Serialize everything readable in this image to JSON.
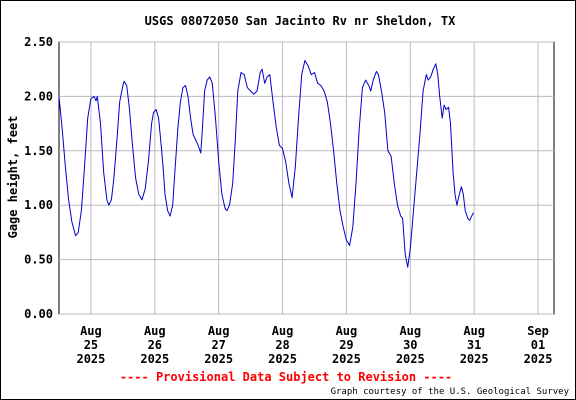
{
  "chart_data": {
    "type": "line",
    "title": "USGS 08072050 San Jacinto Rv nr Sheldon, TX",
    "xlabel": "",
    "ylabel": "Gage height, feet",
    "ylim": [
      0,
      2.5
    ],
    "yticks": [
      "0.00",
      "0.50",
      "1.00",
      "1.50",
      "2.00",
      "2.50"
    ],
    "xlim": [
      0,
      7.75
    ],
    "xticks": [
      {
        "x": 0.5,
        "lines": [
          "Aug",
          "25",
          "2025"
        ]
      },
      {
        "x": 1.5,
        "lines": [
          "Aug",
          "26",
          "2025"
        ]
      },
      {
        "x": 2.5,
        "lines": [
          "Aug",
          "27",
          "2025"
        ]
      },
      {
        "x": 3.5,
        "lines": [
          "Aug",
          "28",
          "2025"
        ]
      },
      {
        "x": 4.5,
        "lines": [
          "Aug",
          "29",
          "2025"
        ]
      },
      {
        "x": 5.5,
        "lines": [
          "Aug",
          "30",
          "2025"
        ]
      },
      {
        "x": 6.5,
        "lines": [
          "Aug",
          "31",
          "2025"
        ]
      },
      {
        "x": 7.5,
        "lines": [
          "Sep",
          "01",
          "2025"
        ]
      }
    ],
    "grid": true,
    "series": [
      {
        "color": "#0000cc",
        "points": [
          [
            0.0,
            2.0
          ],
          [
            0.05,
            1.7
          ],
          [
            0.1,
            1.35
          ],
          [
            0.15,
            1.05
          ],
          [
            0.2,
            0.85
          ],
          [
            0.26,
            0.72
          ],
          [
            0.3,
            0.75
          ],
          [
            0.35,
            0.95
          ],
          [
            0.4,
            1.35
          ],
          [
            0.45,
            1.8
          ],
          [
            0.5,
            1.98
          ],
          [
            0.55,
            2.0
          ],
          [
            0.58,
            1.96
          ],
          [
            0.6,
            2.0
          ],
          [
            0.65,
            1.75
          ],
          [
            0.7,
            1.3
          ],
          [
            0.75,
            1.05
          ],
          [
            0.78,
            1.0
          ],
          [
            0.82,
            1.05
          ],
          [
            0.86,
            1.25
          ],
          [
            0.9,
            1.55
          ],
          [
            0.95,
            1.95
          ],
          [
            1.0,
            2.1
          ],
          [
            1.02,
            2.14
          ],
          [
            1.06,
            2.1
          ],
          [
            1.1,
            1.9
          ],
          [
            1.15,
            1.55
          ],
          [
            1.2,
            1.25
          ],
          [
            1.25,
            1.1
          ],
          [
            1.3,
            1.05
          ],
          [
            1.35,
            1.15
          ],
          [
            1.4,
            1.4
          ],
          [
            1.45,
            1.75
          ],
          [
            1.48,
            1.85
          ],
          [
            1.52,
            1.88
          ],
          [
            1.56,
            1.8
          ],
          [
            1.6,
            1.55
          ],
          [
            1.63,
            1.35
          ],
          [
            1.66,
            1.1
          ],
          [
            1.7,
            0.95
          ],
          [
            1.74,
            0.9
          ],
          [
            1.78,
            1.0
          ],
          [
            1.82,
            1.35
          ],
          [
            1.86,
            1.7
          ],
          [
            1.9,
            1.95
          ],
          [
            1.94,
            2.08
          ],
          [
            1.98,
            2.1
          ],
          [
            2.02,
            2.0
          ],
          [
            2.06,
            1.8
          ],
          [
            2.1,
            1.65
          ],
          [
            2.14,
            1.6
          ],
          [
            2.18,
            1.55
          ],
          [
            2.22,
            1.48
          ],
          [
            2.25,
            1.75
          ],
          [
            2.28,
            2.05
          ],
          [
            2.32,
            2.15
          ],
          [
            2.36,
            2.18
          ],
          [
            2.4,
            2.12
          ],
          [
            2.45,
            1.8
          ],
          [
            2.5,
            1.4
          ],
          [
            2.55,
            1.1
          ],
          [
            2.6,
            0.97
          ],
          [
            2.63,
            0.95
          ],
          [
            2.67,
            1.0
          ],
          [
            2.72,
            1.2
          ],
          [
            2.76,
            1.6
          ],
          [
            2.8,
            2.05
          ],
          [
            2.85,
            2.22
          ],
          [
            2.9,
            2.2
          ],
          [
            2.95,
            2.08
          ],
          [
            3.0,
            2.05
          ],
          [
            3.05,
            2.02
          ],
          [
            3.1,
            2.05
          ],
          [
            3.15,
            2.22
          ],
          [
            3.18,
            2.25
          ],
          [
            3.22,
            2.12
          ],
          [
            3.26,
            2.18
          ],
          [
            3.3,
            2.2
          ],
          [
            3.35,
            1.95
          ],
          [
            3.4,
            1.72
          ],
          [
            3.45,
            1.55
          ],
          [
            3.5,
            1.52
          ],
          [
            3.55,
            1.4
          ],
          [
            3.6,
            1.2
          ],
          [
            3.65,
            1.07
          ],
          [
            3.7,
            1.35
          ],
          [
            3.75,
            1.8
          ],
          [
            3.8,
            2.2
          ],
          [
            3.85,
            2.33
          ],
          [
            3.9,
            2.28
          ],
          [
            3.95,
            2.2
          ],
          [
            4.0,
            2.22
          ],
          [
            4.05,
            2.12
          ],
          [
            4.1,
            2.1
          ],
          [
            4.15,
            2.05
          ],
          [
            4.2,
            1.95
          ],
          [
            4.25,
            1.75
          ],
          [
            4.3,
            1.5
          ],
          [
            4.35,
            1.2
          ],
          [
            4.4,
            0.95
          ],
          [
            4.45,
            0.8
          ],
          [
            4.5,
            0.68
          ],
          [
            4.55,
            0.63
          ],
          [
            4.6,
            0.8
          ],
          [
            4.65,
            1.2
          ],
          [
            4.7,
            1.7
          ],
          [
            4.75,
            2.08
          ],
          [
            4.8,
            2.15
          ],
          [
            4.85,
            2.1
          ],
          [
            4.88,
            2.05
          ],
          [
            4.92,
            2.15
          ],
          [
            4.97,
            2.23
          ],
          [
            5.0,
            2.2
          ],
          [
            5.05,
            2.05
          ],
          [
            5.1,
            1.85
          ],
          [
            5.15,
            1.5
          ],
          [
            5.2,
            1.45
          ],
          [
            5.25,
            1.2
          ],
          [
            5.3,
            1.0
          ],
          [
            5.35,
            0.9
          ],
          [
            5.38,
            0.88
          ],
          [
            5.42,
            0.55
          ],
          [
            5.46,
            0.43
          ],
          [
            5.5,
            0.6
          ],
          [
            5.55,
            0.95
          ],
          [
            5.6,
            1.3
          ],
          [
            5.65,
            1.65
          ],
          [
            5.7,
            2.05
          ],
          [
            5.75,
            2.2
          ],
          [
            5.78,
            2.15
          ],
          [
            5.82,
            2.18
          ],
          [
            5.86,
            2.25
          ],
          [
            5.9,
            2.3
          ],
          [
            5.93,
            2.2
          ],
          [
            5.96,
            2.0
          ],
          [
            6.0,
            1.8
          ],
          [
            6.03,
            1.92
          ],
          [
            6.06,
            1.88
          ],
          [
            6.1,
            1.9
          ],
          [
            6.13,
            1.75
          ],
          [
            6.17,
            1.3
          ],
          [
            6.2,
            1.1
          ],
          [
            6.23,
            1.0
          ],
          [
            6.26,
            1.08
          ],
          [
            6.3,
            1.17
          ],
          [
            6.33,
            1.1
          ],
          [
            6.36,
            0.95
          ],
          [
            6.4,
            0.88
          ],
          [
            6.43,
            0.86
          ],
          [
            6.46,
            0.9
          ],
          [
            6.49,
            0.93
          ]
        ]
      }
    ]
  },
  "footer": {
    "provisional": "---- Provisional Data Subject to Revision ----",
    "provisional_color": "#ff0000",
    "courtesy": "Graph courtesy of the U.S. Geological Survey"
  }
}
